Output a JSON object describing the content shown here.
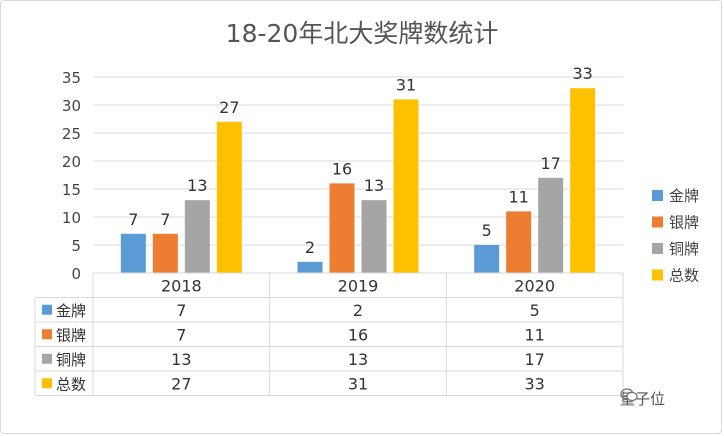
{
  "chart_data": {
    "type": "bar",
    "title": "18-20年北大奖牌数统计",
    "categories": [
      "2018",
      "2019",
      "2020"
    ],
    "series": [
      {
        "name": "金牌",
        "color": "#5b9bd5",
        "values": [
          7,
          2,
          5
        ]
      },
      {
        "name": "银牌",
        "color": "#ed7d31",
        "values": [
          7,
          16,
          11
        ]
      },
      {
        "name": "铜牌",
        "color": "#a5a5a5",
        "values": [
          13,
          13,
          17
        ]
      },
      {
        "name": "总数",
        "color": "#ffc000",
        "values": [
          27,
          31,
          33
        ]
      }
    ],
    "ylim": [
      0,
      35
    ],
    "yticks": [
      0,
      5,
      10,
      15,
      20,
      25,
      30,
      35
    ],
    "grid": true,
    "legend": "right",
    "data_table": true
  },
  "watermark": {
    "text": "量子位"
  }
}
